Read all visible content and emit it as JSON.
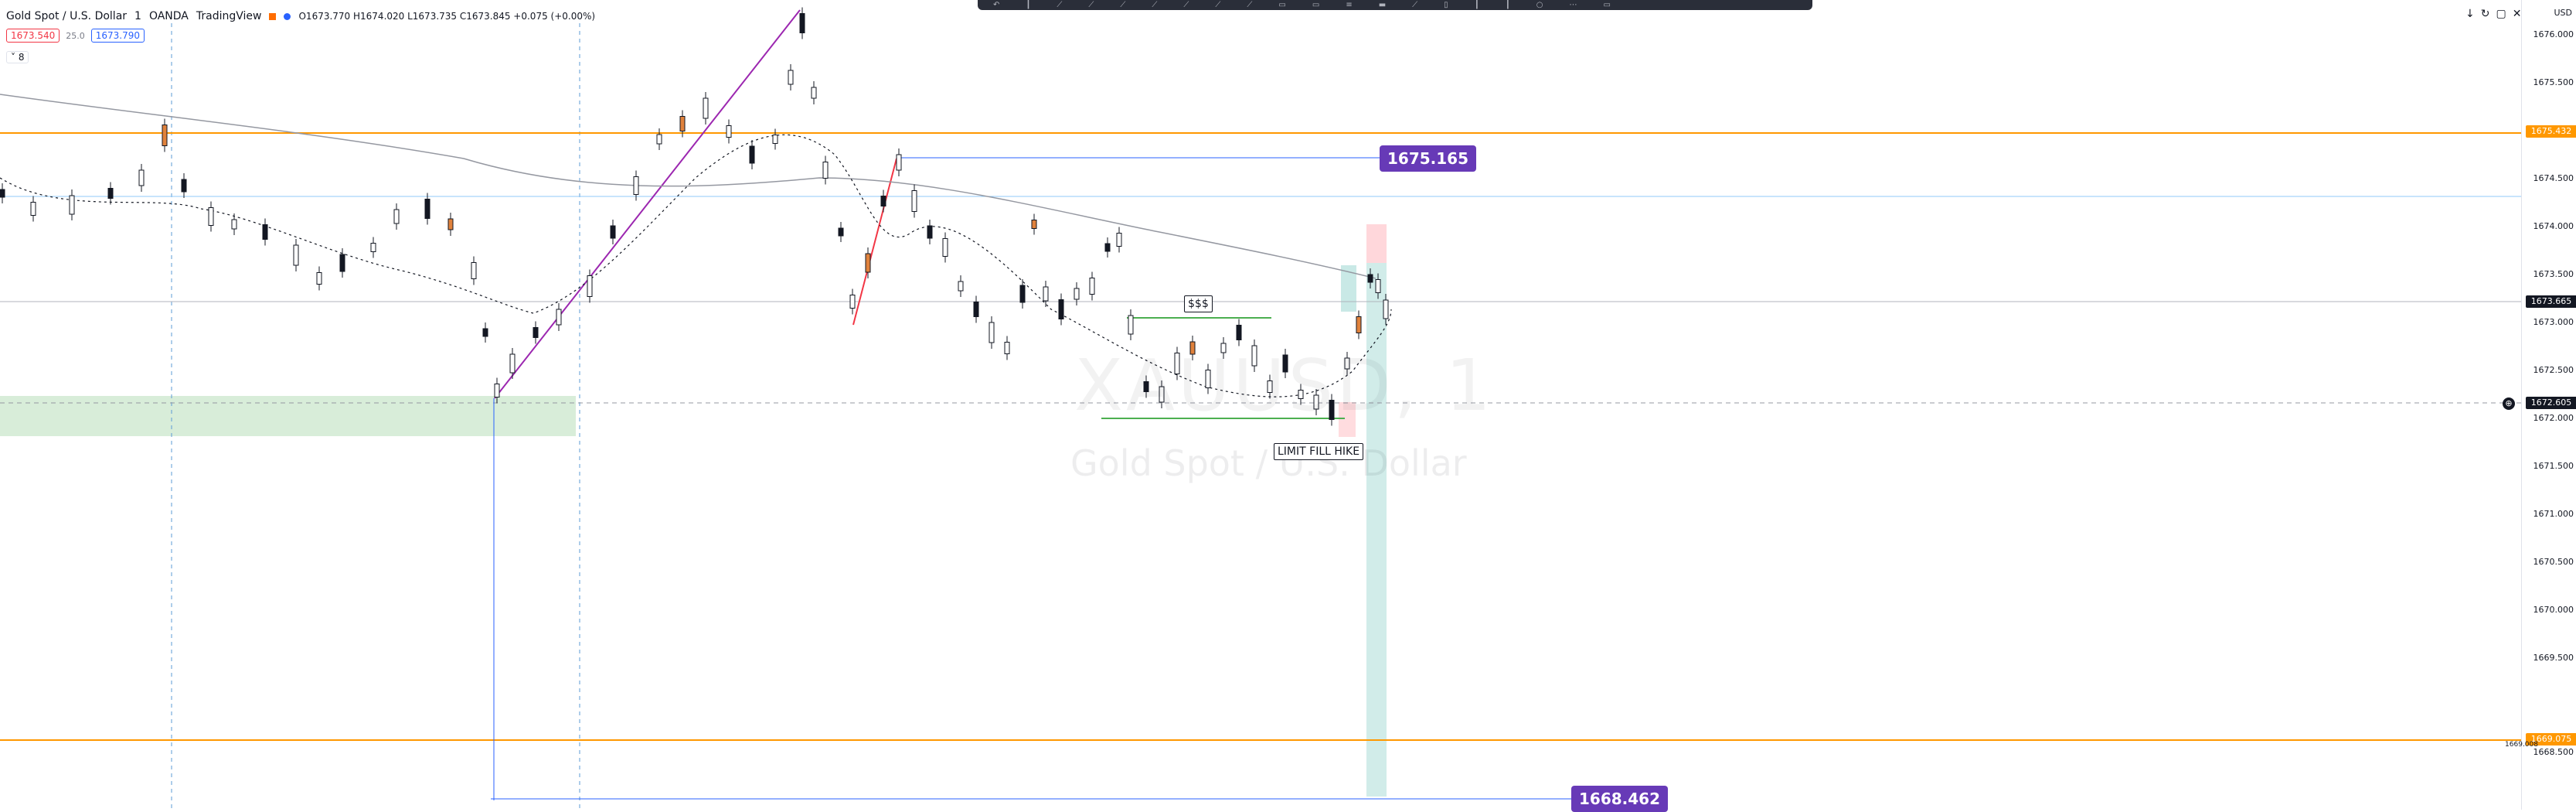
{
  "header": {
    "symbol": "Gold Spot / U.S. Dollar",
    "interval": "1",
    "broker": "OANDA",
    "platform": "TradingView",
    "ohlc": "O1673.770 H1674.020 L1673.735 C1673.845 +0.075 (+0.00%)",
    "sell_price": "1673.540",
    "spread": "25.0",
    "buy_price": "1673.790",
    "collapse_label": "8"
  },
  "axis": {
    "currency": "USD",
    "ticks": [
      "1676.000",
      "1675.500",
      "1675.000",
      "1674.500",
      "1674.000",
      "1673.500",
      "1673.000",
      "1672.500",
      "1672.000",
      "1671.500",
      "1671.000",
      "1670.500",
      "1670.000",
      "1669.500",
      "1668.500"
    ],
    "tags": {
      "orange_top": "1675.432",
      "current": "1673.665",
      "crosshair": "1672.605",
      "orange_bottom": "1669.075",
      "small_label": "1669.008"
    }
  },
  "annotations": {
    "badge_top": "1675.165",
    "badge_bottom": "1668.462",
    "dollar_label": "$$$",
    "limit_label": "LIMIT FILL HIKE"
  },
  "watermark": {
    "symbol": "XAUUSD, 1",
    "name": "Gold Spot / U.S. Dollar"
  },
  "colors": {
    "up": "#ffffff",
    "down": "#131722",
    "accent_orange": "#ff9800",
    "badge_purple": "#673ab7",
    "zone_green": "#c8e6c9",
    "teal_zone": "#b2dfdb",
    "pink_zone": "#ffcdd2"
  },
  "icons": [
    "live-dot-icon",
    "flag-icon",
    "download-icon",
    "refresh-icon",
    "maximize-icon",
    "close-icon",
    "target-icon"
  ]
}
